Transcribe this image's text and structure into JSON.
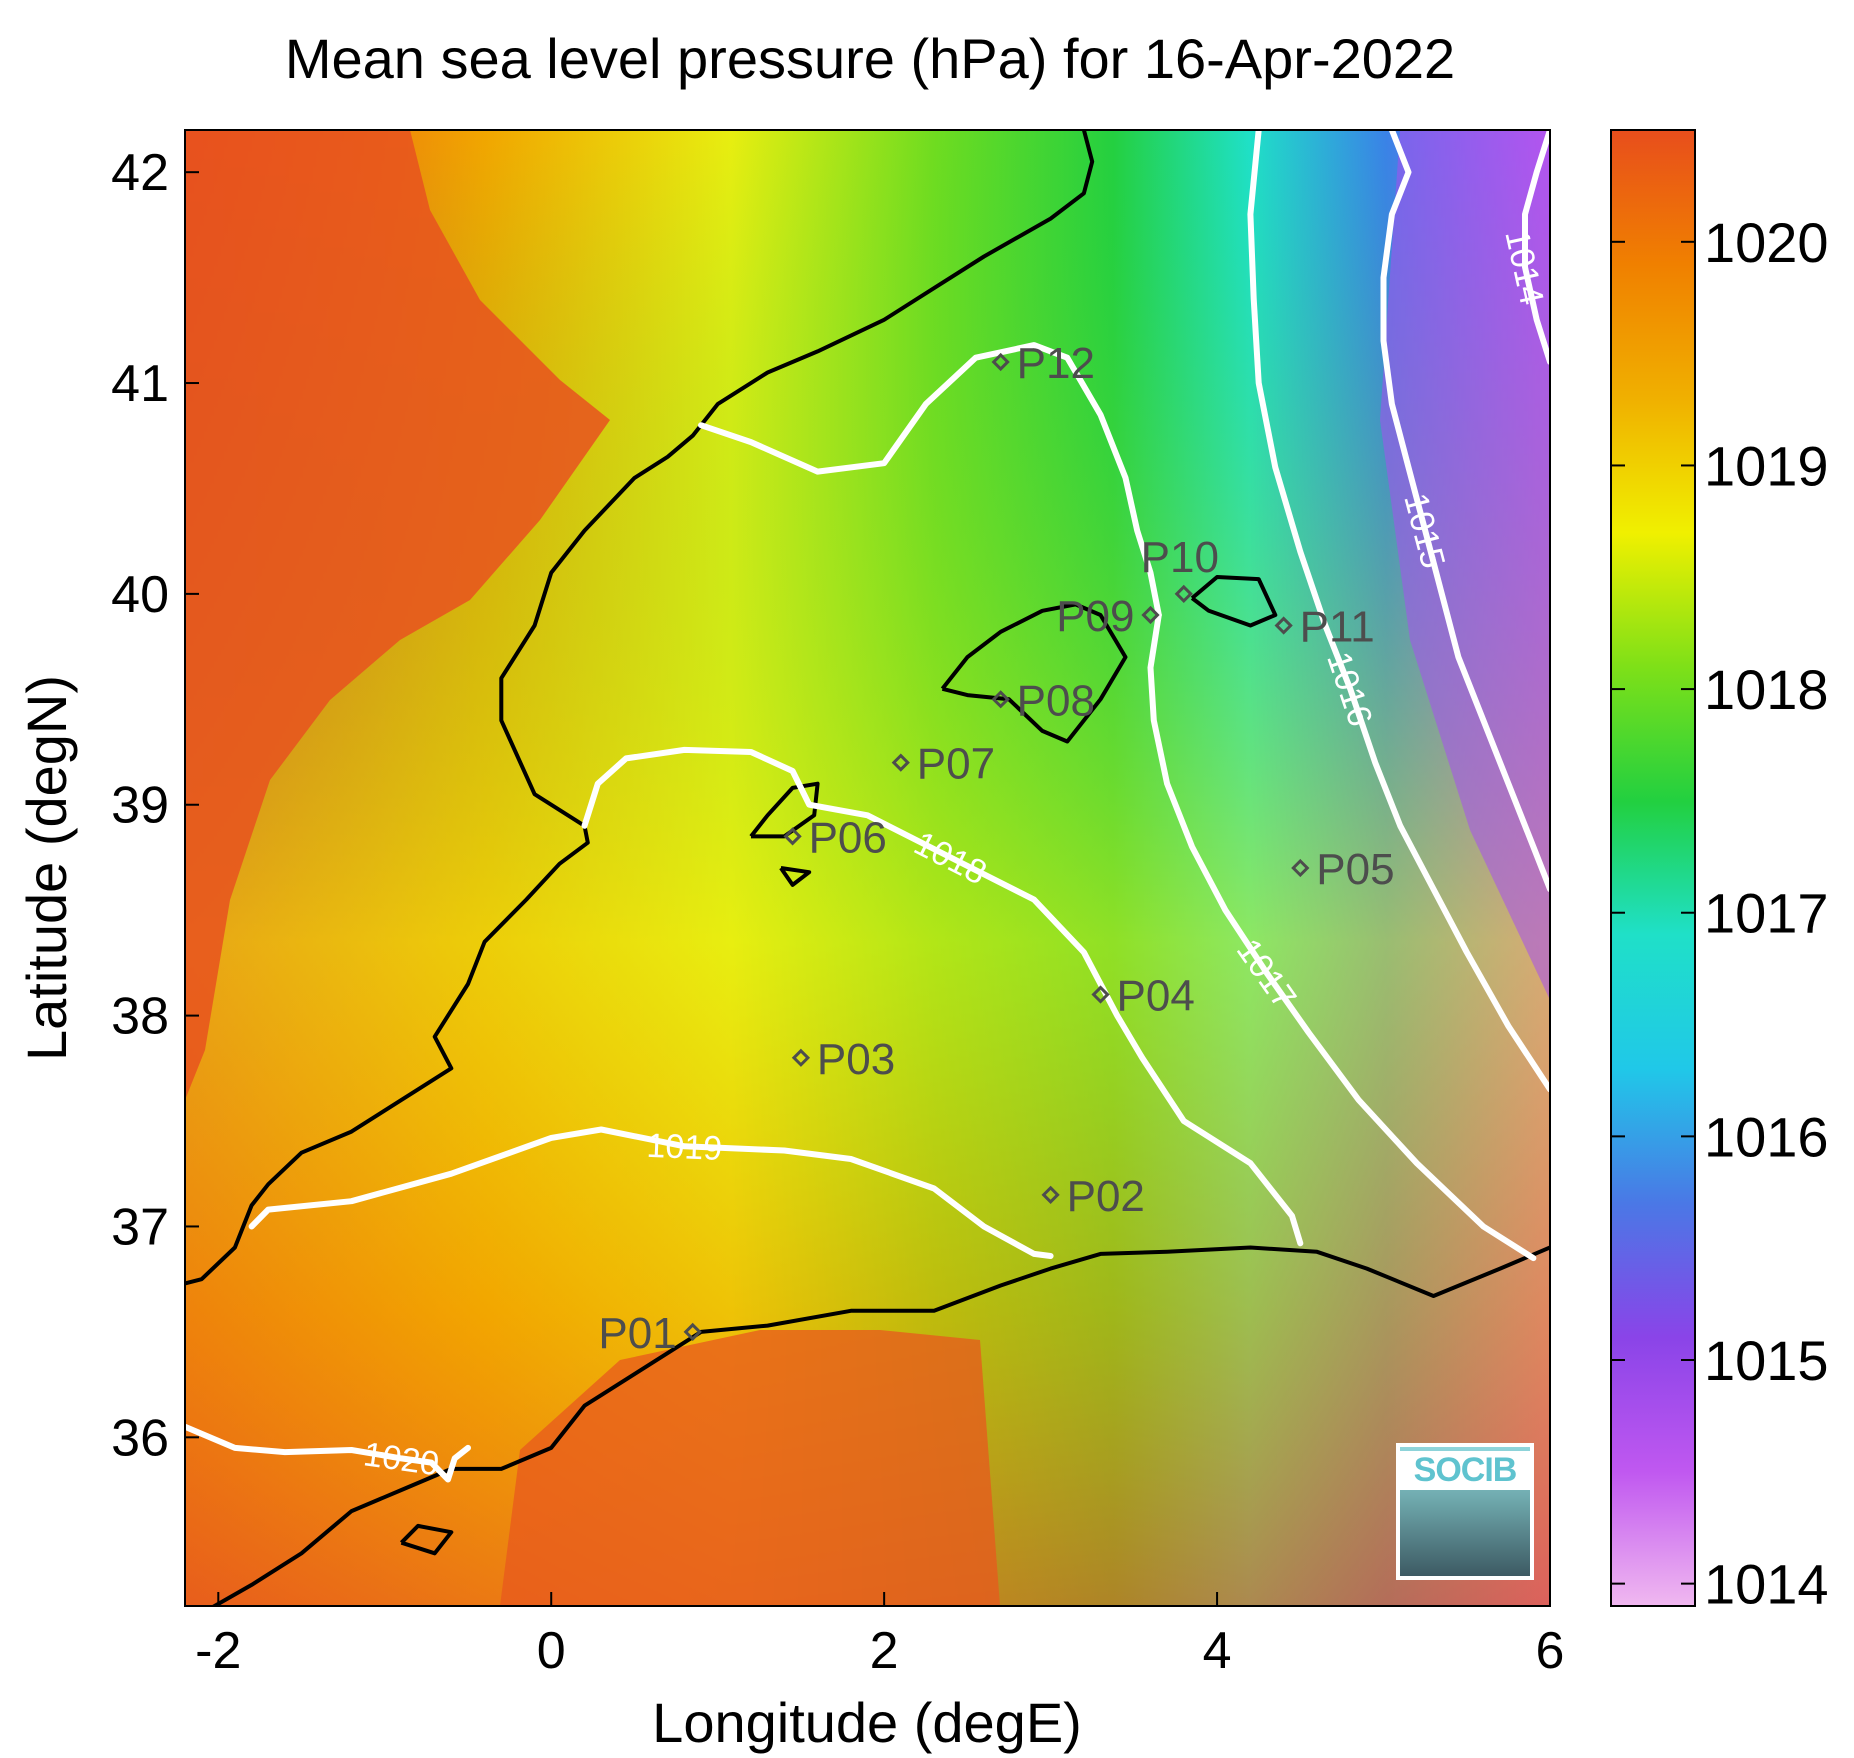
{
  "title": "Mean sea level pressure (hPa) for 16-Apr-2022",
  "map": {
    "xlabel": "Longitude (degE)",
    "ylabel": "Latitude (degN)",
    "xlim": [
      -2.2,
      6
    ],
    "ylim": [
      35.2,
      42.2
    ],
    "x_ticks": [
      -2,
      0,
      2,
      4,
      6
    ],
    "x_tick_labels": [
      "-2",
      "0",
      "2",
      "4",
      "6"
    ],
    "y_ticks": [
      36,
      37,
      38,
      39,
      40,
      41,
      42
    ],
    "y_tick_labels": [
      "36",
      "37",
      "38",
      "39",
      "40",
      "41",
      "42"
    ],
    "field": "mean sea level pressure",
    "contour_color": "#ffffff",
    "coastline_color": "#000000"
  },
  "colorbar": {
    "range": [
      1013.9,
      1020.5
    ],
    "ticks": [
      1014,
      1015,
      1016,
      1017,
      1018,
      1019,
      1020
    ],
    "tick_labels": [
      "1014",
      "1015",
      "1016",
      "1017",
      "1018",
      "1019",
      "1020"
    ],
    "colors": [
      "#f0b8f0",
      "#c058f0",
      "#8a44e8",
      "#4a78e6",
      "#20c8e8",
      "#1fe0c8",
      "#22d040",
      "#7ee018",
      "#f0f000",
      "#f0b000",
      "#f08000",
      "#e84e1c"
    ]
  },
  "contours": [
    {
      "level": 1020,
      "label": "1020",
      "points": [
        [
          -2.2,
          36.05
        ],
        [
          -1.9,
          35.95
        ],
        [
          -1.6,
          35.93
        ],
        [
          -1.2,
          35.94
        ],
        [
          -0.9,
          35.9
        ],
        [
          -0.72,
          35.88
        ],
        [
          -0.62,
          35.8
        ],
        [
          -0.58,
          35.9
        ],
        [
          -0.5,
          35.95
        ]
      ]
    },
    {
      "level": 1019,
      "label": "1019",
      "points": [
        [
          -1.8,
          37.0
        ],
        [
          -1.7,
          37.08
        ],
        [
          -1.2,
          37.12
        ],
        [
          -0.6,
          37.25
        ],
        [
          0.0,
          37.42
        ],
        [
          0.3,
          37.46
        ],
        [
          0.8,
          37.38
        ],
        [
          1.4,
          37.36
        ],
        [
          1.8,
          37.32
        ],
        [
          2.3,
          37.18
        ],
        [
          2.6,
          37.0
        ],
        [
          2.9,
          36.87
        ],
        [
          3.0,
          36.86
        ]
      ]
    },
    {
      "level": 1018,
      "label": "1018",
      "points": [
        [
          0.2,
          38.9
        ],
        [
          0.28,
          39.1
        ],
        [
          0.45,
          39.22
        ],
        [
          0.8,
          39.26
        ],
        [
          1.2,
          39.25
        ],
        [
          1.45,
          39.16
        ],
        [
          1.55,
          39.0
        ],
        [
          1.9,
          38.95
        ],
        [
          2.4,
          38.75
        ],
        [
          2.9,
          38.55
        ],
        [
          3.2,
          38.3
        ],
        [
          3.4,
          38.0
        ],
        [
          3.55,
          37.8
        ],
        [
          3.8,
          37.5
        ],
        [
          4.2,
          37.3
        ],
        [
          4.45,
          37.05
        ],
        [
          4.5,
          36.92
        ]
      ]
    },
    {
      "level": 1018,
      "label": "",
      "points": [
        [
          0.9,
          40.8
        ],
        [
          1.2,
          40.72
        ],
        [
          1.6,
          40.58
        ],
        [
          2.0,
          40.62
        ],
        [
          2.25,
          40.9
        ],
        [
          2.55,
          41.12
        ],
        [
          2.9,
          41.18
        ],
        [
          3.1,
          41.12
        ],
        [
          3.3,
          40.85
        ],
        [
          3.45,
          40.55
        ],
        [
          3.52,
          40.3
        ],
        [
          3.6,
          40.1
        ],
        [
          3.65,
          39.9
        ]
      ]
    },
    {
      "level": 1017,
      "label": "1017",
      "points": [
        [
          3.65,
          39.9
        ],
        [
          3.6,
          39.65
        ],
        [
          3.62,
          39.4
        ],
        [
          3.7,
          39.1
        ],
        [
          3.85,
          38.8
        ],
        [
          4.05,
          38.5
        ],
        [
          4.3,
          38.2
        ],
        [
          4.55,
          37.92
        ],
        [
          4.85,
          37.6
        ],
        [
          5.2,
          37.3
        ],
        [
          5.6,
          37.0
        ],
        [
          5.9,
          36.85
        ]
      ]
    },
    {
      "level": 1016,
      "label": "1016",
      "points": [
        [
          4.25,
          42.2
        ],
        [
          4.2,
          41.8
        ],
        [
          4.22,
          41.4
        ],
        [
          4.25,
          41.0
        ],
        [
          4.35,
          40.6
        ],
        [
          4.5,
          40.2
        ],
        [
          4.65,
          39.85
        ],
        [
          4.8,
          39.55
        ],
        [
          4.95,
          39.2
        ],
        [
          5.1,
          38.9
        ],
        [
          5.3,
          38.6
        ],
        [
          5.5,
          38.3
        ],
        [
          5.75,
          37.95
        ],
        [
          6.0,
          37.65
        ]
      ]
    },
    {
      "level": 1015,
      "label": "1015",
      "points": [
        [
          5.05,
          42.2
        ],
        [
          5.15,
          42.0
        ],
        [
          5.05,
          41.8
        ],
        [
          5.0,
          41.5
        ],
        [
          5.0,
          41.2
        ],
        [
          5.05,
          40.9
        ],
        [
          5.15,
          40.6
        ],
        [
          5.25,
          40.3
        ],
        [
          5.35,
          40.0
        ],
        [
          5.45,
          39.7
        ],
        [
          5.6,
          39.4
        ],
        [
          5.75,
          39.1
        ],
        [
          5.9,
          38.8
        ],
        [
          6.0,
          38.6
        ]
      ]
    },
    {
      "level": 1014,
      "label": "1014",
      "points": [
        [
          6.0,
          42.2
        ],
        [
          5.92,
          42.0
        ],
        [
          5.85,
          41.8
        ],
        [
          5.85,
          41.55
        ],
        [
          5.92,
          41.3
        ],
        [
          6.0,
          41.1
        ]
      ]
    }
  ],
  "coastlines": [
    {
      "name": "iberian-coast",
      "points": [
        [
          -2.2,
          36.73
        ],
        [
          -2.1,
          36.75
        ],
        [
          -1.9,
          36.9
        ],
        [
          -1.8,
          37.1
        ],
        [
          -1.7,
          37.2
        ],
        [
          -1.5,
          37.35
        ],
        [
          -1.2,
          37.45
        ],
        [
          -0.9,
          37.6
        ],
        [
          -0.8,
          37.65
        ],
        [
          -0.6,
          37.75
        ],
        [
          -0.7,
          37.9
        ],
        [
          -0.5,
          38.15
        ],
        [
          -0.4,
          38.35
        ],
        [
          -0.15,
          38.55
        ],
        [
          0.05,
          38.72
        ],
        [
          0.22,
          38.82
        ],
        [
          0.2,
          38.9
        ],
        [
          -0.1,
          39.05
        ],
        [
          -0.3,
          39.4
        ],
        [
          -0.3,
          39.6
        ],
        [
          -0.1,
          39.85
        ],
        [
          0.0,
          40.1
        ],
        [
          0.2,
          40.3
        ],
        [
          0.5,
          40.55
        ],
        [
          0.7,
          40.65
        ],
        [
          0.85,
          40.75
        ],
        [
          1.0,
          40.9
        ],
        [
          1.3,
          41.05
        ],
        [
          1.6,
          41.15
        ],
        [
          2.0,
          41.3
        ],
        [
          2.3,
          41.45
        ],
        [
          2.6,
          41.6
        ],
        [
          3.0,
          41.78
        ],
        [
          3.2,
          41.9
        ],
        [
          3.25,
          42.05
        ],
        [
          3.2,
          42.2
        ]
      ]
    },
    {
      "name": "african-coast",
      "points": [
        [
          -2.2,
          35.12
        ],
        [
          -1.8,
          35.3
        ],
        [
          -1.5,
          35.45
        ],
        [
          -1.2,
          35.65
        ],
        [
          -0.9,
          35.75
        ],
        [
          -0.6,
          35.85
        ],
        [
          -0.3,
          35.85
        ],
        [
          0.0,
          35.95
        ],
        [
          0.2,
          36.15
        ],
        [
          0.5,
          36.3
        ],
        [
          0.9,
          36.5
        ],
        [
          1.3,
          36.53
        ],
        [
          1.8,
          36.6
        ],
        [
          2.3,
          36.6
        ],
        [
          2.7,
          36.72
        ],
        [
          3.0,
          36.8
        ],
        [
          3.3,
          36.87
        ],
        [
          3.7,
          36.88
        ],
        [
          4.2,
          36.9
        ],
        [
          4.6,
          36.88
        ],
        [
          4.9,
          36.8
        ],
        [
          5.3,
          36.67
        ],
        [
          5.7,
          36.8
        ],
        [
          6.0,
          36.9
        ]
      ]
    },
    {
      "name": "alboran-island",
      "points": [
        [
          -0.9,
          35.5
        ],
        [
          -0.7,
          35.45
        ],
        [
          -0.6,
          35.55
        ],
        [
          -0.8,
          35.58
        ],
        [
          -0.9,
          35.5
        ]
      ]
    },
    {
      "name": "ibiza",
      "points": [
        [
          1.2,
          38.85
        ],
        [
          1.3,
          38.95
        ],
        [
          1.45,
          39.08
        ],
        [
          1.6,
          39.1
        ],
        [
          1.58,
          38.95
        ],
        [
          1.4,
          38.85
        ],
        [
          1.25,
          38.85
        ],
        [
          1.2,
          38.85
        ]
      ]
    },
    {
      "name": "formentera",
      "points": [
        [
          1.38,
          38.7
        ],
        [
          1.55,
          38.68
        ],
        [
          1.45,
          38.62
        ],
        [
          1.38,
          38.7
        ]
      ]
    },
    {
      "name": "mallorca",
      "points": [
        [
          2.35,
          39.55
        ],
        [
          2.5,
          39.7
        ],
        [
          2.7,
          39.82
        ],
        [
          2.95,
          39.92
        ],
        [
          3.15,
          39.95
        ],
        [
          3.3,
          39.9
        ],
        [
          3.45,
          39.7
        ],
        [
          3.3,
          39.5
        ],
        [
          3.1,
          39.3
        ],
        [
          2.95,
          39.35
        ],
        [
          2.75,
          39.5
        ],
        [
          2.5,
          39.52
        ],
        [
          2.35,
          39.55
        ]
      ]
    },
    {
      "name": "menorca",
      "points": [
        [
          3.85,
          39.98
        ],
        [
          4.0,
          40.08
        ],
        [
          4.25,
          40.07
        ],
        [
          4.35,
          39.9
        ],
        [
          4.2,
          39.85
        ],
        [
          3.95,
          39.92
        ],
        [
          3.85,
          39.98
        ]
      ]
    }
  ],
  "stations": [
    {
      "name": "P01",
      "lon": 0.85,
      "lat": 36.5,
      "label_side": "left"
    },
    {
      "name": "P02",
      "lon": 3.0,
      "lat": 37.15,
      "label_side": "right"
    },
    {
      "name": "P03",
      "lon": 1.5,
      "lat": 37.8,
      "label_side": "right"
    },
    {
      "name": "P04",
      "lon": 3.3,
      "lat": 38.1,
      "label_side": "right"
    },
    {
      "name": "P05",
      "lon": 4.5,
      "lat": 38.7,
      "label_side": "right"
    },
    {
      "name": "P06",
      "lon": 1.45,
      "lat": 38.85,
      "label_side": "right"
    },
    {
      "name": "P07",
      "lon": 2.1,
      "lat": 39.2,
      "label_side": "right"
    },
    {
      "name": "P08",
      "lon": 2.7,
      "lat": 39.5,
      "label_side": "right"
    },
    {
      "name": "P09",
      "lon": 3.6,
      "lat": 39.9,
      "label_side": "left"
    },
    {
      "name": "P10",
      "lon": 3.8,
      "lat": 40.0,
      "label_side": "above"
    },
    {
      "name": "P11",
      "lon": 4.4,
      "lat": 39.85,
      "label_side": "right"
    },
    {
      "name": "P12",
      "lon": 2.7,
      "lat": 41.1,
      "label_side": "right"
    }
  ],
  "logo": {
    "text": "SOCIB"
  }
}
